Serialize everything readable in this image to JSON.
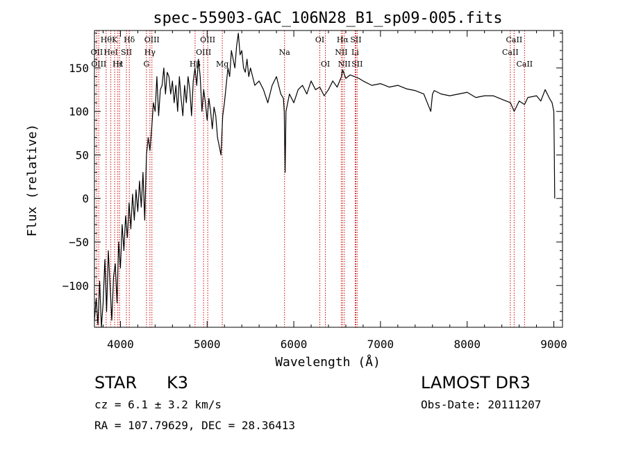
{
  "chart_data": {
    "type": "line",
    "title": "spec-55903-GAC_106N28_B1_sp09-005.fits",
    "xlabel": "Wavelength (Å)",
    "ylabel": "Flux (relative)",
    "xlim": [
      3700,
      9100
    ],
    "ylim": [
      -148,
      193
    ],
    "x_ticks": [
      4000,
      5000,
      6000,
      7000,
      8000,
      9000
    ],
    "y_ticks": [
      -100,
      -50,
      0,
      50,
      100,
      150
    ],
    "x_tick_labels": [
      "4000",
      "5000",
      "6000",
      "7000",
      "8000",
      "9000"
    ],
    "y_tick_labels": [
      "−100",
      "−50",
      "0",
      "50",
      "100",
      "150"
    ],
    "line_color": "#000000",
    "marker_color": "#cc0000",
    "grid": false,
    "series": [
      {
        "x": [
          3700,
          3720,
          3740,
          3760,
          3780,
          3800,
          3820,
          3840,
          3860,
          3880,
          3900,
          3920,
          3940,
          3960,
          3980,
          4000,
          4020,
          4040,
          4060,
          4080,
          4100,
          4120,
          4140,
          4160,
          4180,
          4200,
          4220,
          4240,
          4260,
          4280,
          4300,
          4320,
          4340,
          4360,
          4380,
          4400,
          4420,
          4440,
          4460,
          4480,
          4500,
          4520,
          4540,
          4560,
          4580,
          4600,
          4620,
          4640,
          4660,
          4680,
          4700,
          4720,
          4740,
          4760,
          4780,
          4800,
          4820,
          4840,
          4860,
          4880,
          4900,
          4920,
          4940,
          4960,
          4980,
          5000,
          5020,
          5040,
          5060,
          5080,
          5100,
          5120,
          5140,
          5160,
          5180,
          5200,
          5220,
          5240,
          5260,
          5280,
          5300,
          5320,
          5340,
          5360,
          5380,
          5400,
          5420,
          5440,
          5460,
          5480,
          5500,
          5550,
          5600,
          5650,
          5700,
          5750,
          5800,
          5850,
          5880,
          5890,
          5900,
          5910,
          5950,
          6000,
          6050,
          6100,
          6150,
          6200,
          6250,
          6300,
          6350,
          6400,
          6450,
          6500,
          6550,
          6563,
          6600,
          6650,
          6700,
          6750,
          6800,
          6900,
          7000,
          7100,
          7200,
          7300,
          7400,
          7500,
          7580,
          7600,
          7620,
          7700,
          7800,
          7900,
          8000,
          8100,
          8200,
          8300,
          8400,
          8500,
          8542,
          8600,
          8662,
          8700,
          8800,
          8850,
          8900,
          8950,
          8980,
          9000,
          9005,
          9010
        ],
        "y": [
          -140,
          -115,
          -145,
          -95,
          -148,
          -120,
          -70,
          -130,
          -60,
          -100,
          -140,
          -90,
          -75,
          -120,
          -50,
          -80,
          -30,
          -60,
          -20,
          -45,
          -5,
          -35,
          5,
          -25,
          10,
          -15,
          20,
          -10,
          30,
          -25,
          50,
          70,
          55,
          80,
          110,
          100,
          140,
          95,
          125,
          130,
          150,
          120,
          145,
          140,
          120,
          135,
          110,
          130,
          100,
          140,
          115,
          95,
          130,
          110,
          140,
          125,
          95,
          135,
          150,
          130,
          160,
          140,
          100,
          125,
          110,
          90,
          115,
          100,
          80,
          105,
          95,
          70,
          60,
          50,
          95,
          110,
          130,
          150,
          140,
          170,
          160,
          150,
          175,
          190,
          165,
          170,
          150,
          145,
          160,
          140,
          150,
          130,
          135,
          125,
          110,
          130,
          140,
          120,
          115,
          100,
          30,
          100,
          120,
          110,
          125,
          130,
          120,
          135,
          125,
          128,
          118,
          125,
          135,
          128,
          140,
          148,
          138,
          142,
          140,
          138,
          135,
          130,
          132,
          128,
          130,
          126,
          124,
          120,
          100,
          120,
          124,
          120,
          118,
          120,
          122,
          116,
          118,
          118,
          114,
          110,
          100,
          112,
          108,
          116,
          118,
          112,
          125,
          115,
          110,
          100,
          60,
          0
        ]
      }
    ],
    "line_markers": [
      {
        "wavelength": 3727,
        "label": "OII",
        "row": 1
      },
      {
        "wavelength": 3750,
        "label": "OIII",
        "row": 2
      },
      {
        "wavelength": 3835,
        "label": "Hθ",
        "row": 0
      },
      {
        "wavelength": 3889,
        "label": "HeI",
        "row": 1
      },
      {
        "wavelength": 3933,
        "label": "K",
        "row": 0
      },
      {
        "wavelength": 3970,
        "label": "Hε",
        "row": 2
      },
      {
        "wavelength": 3990,
        "label": "H",
        "row": 2
      },
      {
        "wavelength": 4069,
        "label": "SII",
        "row": 1
      },
      {
        "wavelength": 4102,
        "label": "Hδ",
        "row": 0
      },
      {
        "wavelength": 4300,
        "label": "G",
        "row": 2
      },
      {
        "wavelength": 4340,
        "label": "Hγ",
        "row": 1
      },
      {
        "wavelength": 4363,
        "label": "OIII",
        "row": 0
      },
      {
        "wavelength": 4861,
        "label": "Hβ",
        "row": 2
      },
      {
        "wavelength": 4959,
        "label": "OIII",
        "row": 1
      },
      {
        "wavelength": 5007,
        "label": "OIII",
        "row": 0
      },
      {
        "wavelength": 5175,
        "label": "Mg",
        "row": 2
      },
      {
        "wavelength": 5893,
        "label": "Na",
        "row": 1
      },
      {
        "wavelength": 6300,
        "label": "OI",
        "row": 0
      },
      {
        "wavelength": 6364,
        "label": "OI",
        "row": 2
      },
      {
        "wavelength": 6548,
        "label": "NII",
        "row": 1
      },
      {
        "wavelength": 6563,
        "label": "Hα",
        "row": 0
      },
      {
        "wavelength": 6583,
        "label": "NII",
        "row": 2
      },
      {
        "wavelength": 6708,
        "label": "Li",
        "row": 1
      },
      {
        "wavelength": 6716,
        "label": "SII",
        "row": 0
      },
      {
        "wavelength": 6731,
        "label": "SII",
        "row": 2
      },
      {
        "wavelength": 8498,
        "label": "CaII",
        "row": 1
      },
      {
        "wavelength": 8542,
        "label": "CaII",
        "row": 0
      },
      {
        "wavelength": 8662,
        "label": "CaII",
        "row": 2
      }
    ]
  },
  "info": {
    "object_class": "STAR",
    "subclass": "K3",
    "survey": "LAMOST DR3",
    "redshift": "cz = 6.1 ± 3.2 km/s",
    "obs_date": "Obs-Date: 20111207",
    "coords": "RA = 107.79629, DEC =  28.36413"
  }
}
